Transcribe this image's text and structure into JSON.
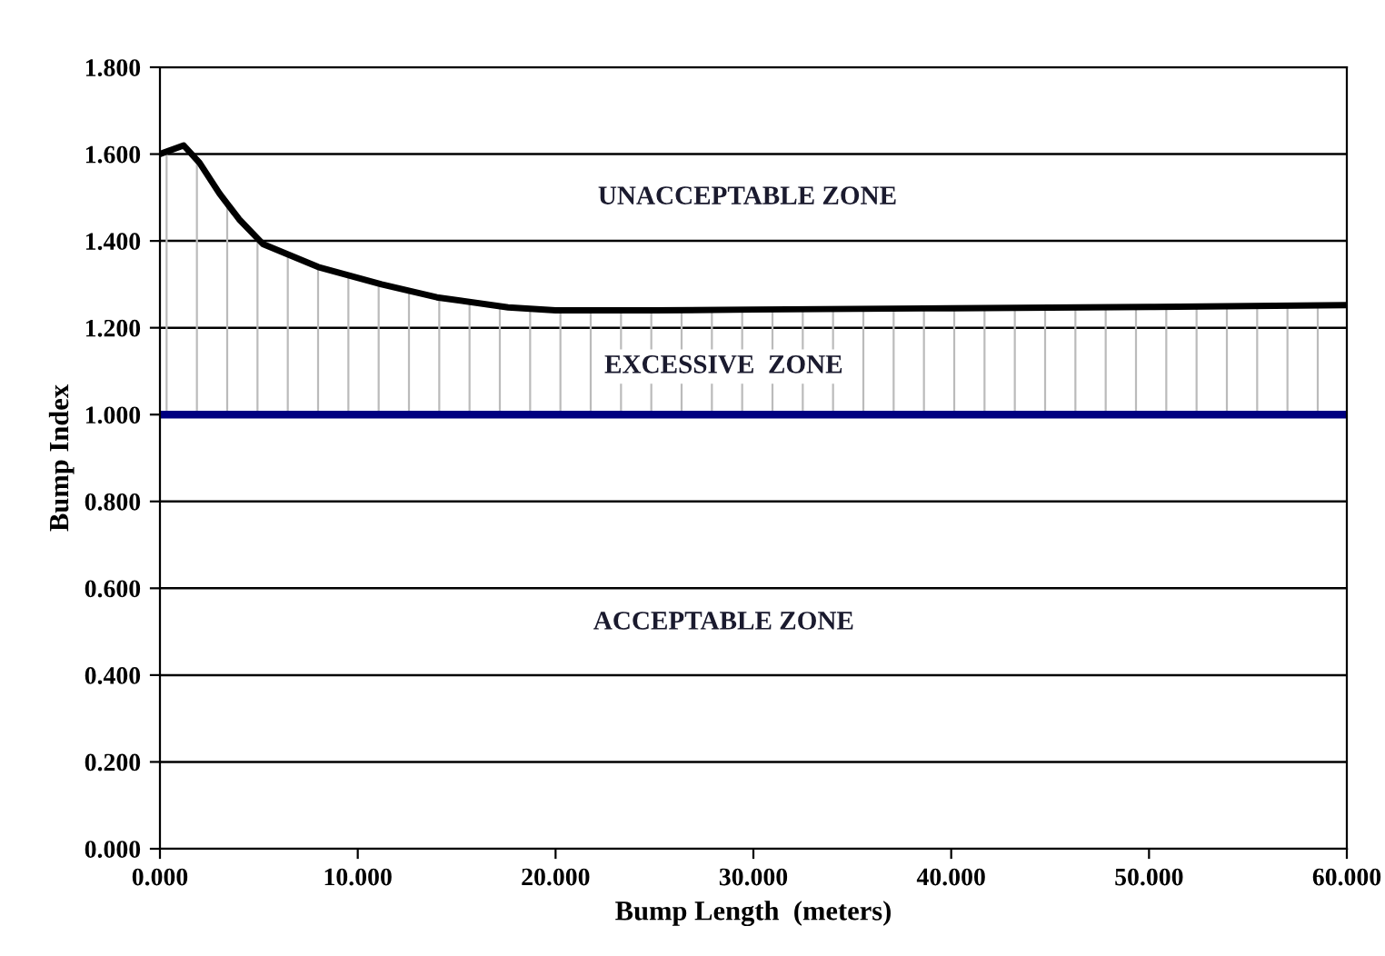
{
  "chart_data": {
    "type": "line",
    "xlabel": "Bump Length  (meters)",
    "ylabel": "Bump Index",
    "x": [
      0,
      1.2,
      2,
      3,
      4,
      5.2,
      8,
      11.2,
      14,
      17.6,
      20,
      25,
      30,
      40,
      50,
      60
    ],
    "series": [
      {
        "color": "#000000",
        "values": [
          1.6,
          1.62,
          1.58,
          1.51,
          1.45,
          1.393,
          1.34,
          1.3,
          1.27,
          1.247,
          1.24,
          1.24,
          1.242,
          1.245,
          1.248,
          1.252
        ],
        "lower": [
          1.0,
          1.0,
          1.0,
          1.0,
          1.0,
          1.0,
          1.0,
          1.0,
          1.0,
          1.0,
          1.0,
          1.0,
          1.0,
          1.0,
          1.0,
          1.0
        ],
        "upper": [
          1.6,
          1.62,
          1.58,
          1.51,
          1.45,
          1.393,
          1.34,
          1.3,
          1.27,
          1.247,
          1.24,
          1.24,
          1.242,
          1.245,
          1.248,
          1.252
        ]
      }
    ],
    "xlim": [
      0,
      60
    ],
    "ylim": [
      0,
      1.8
    ],
    "xticks": [
      {
        "value": 0,
        "label": "0.000"
      },
      {
        "value": 10,
        "label": "10.000"
      },
      {
        "value": 20,
        "label": "20.000"
      },
      {
        "value": 30,
        "label": "30.000"
      },
      {
        "value": 40,
        "label": "40.000"
      },
      {
        "value": 50,
        "label": "50.000"
      },
      {
        "value": 60,
        "label": "60.000"
      }
    ],
    "yticks": [
      {
        "value": 0,
        "label": "0.000"
      },
      {
        "value": 0.2,
        "label": "0.200"
      },
      {
        "value": 0.4,
        "label": "0.400"
      },
      {
        "value": 0.6,
        "label": "0.600"
      },
      {
        "value": 0.8,
        "label": "0.800"
      },
      {
        "value": 1.0,
        "label": "1.000"
      },
      {
        "value": 1.2,
        "label": "1.200"
      },
      {
        "value": 1.4,
        "label": "1.400"
      },
      {
        "value": 1.6,
        "label": "1.600"
      },
      {
        "value": 1.8,
        "label": "1.800"
      }
    ],
    "grid": "y",
    "marker": "none",
    "line_style": "solid",
    "ref_lines": [
      {
        "axis": "y",
        "value": 1.0,
        "color": "#000080"
      }
    ],
    "annotations": [
      "UNACCEPTABLE ZONE",
      "EXCESSIVE  ZONE",
      "ACCEPTABLE ZONE"
    ]
  }
}
